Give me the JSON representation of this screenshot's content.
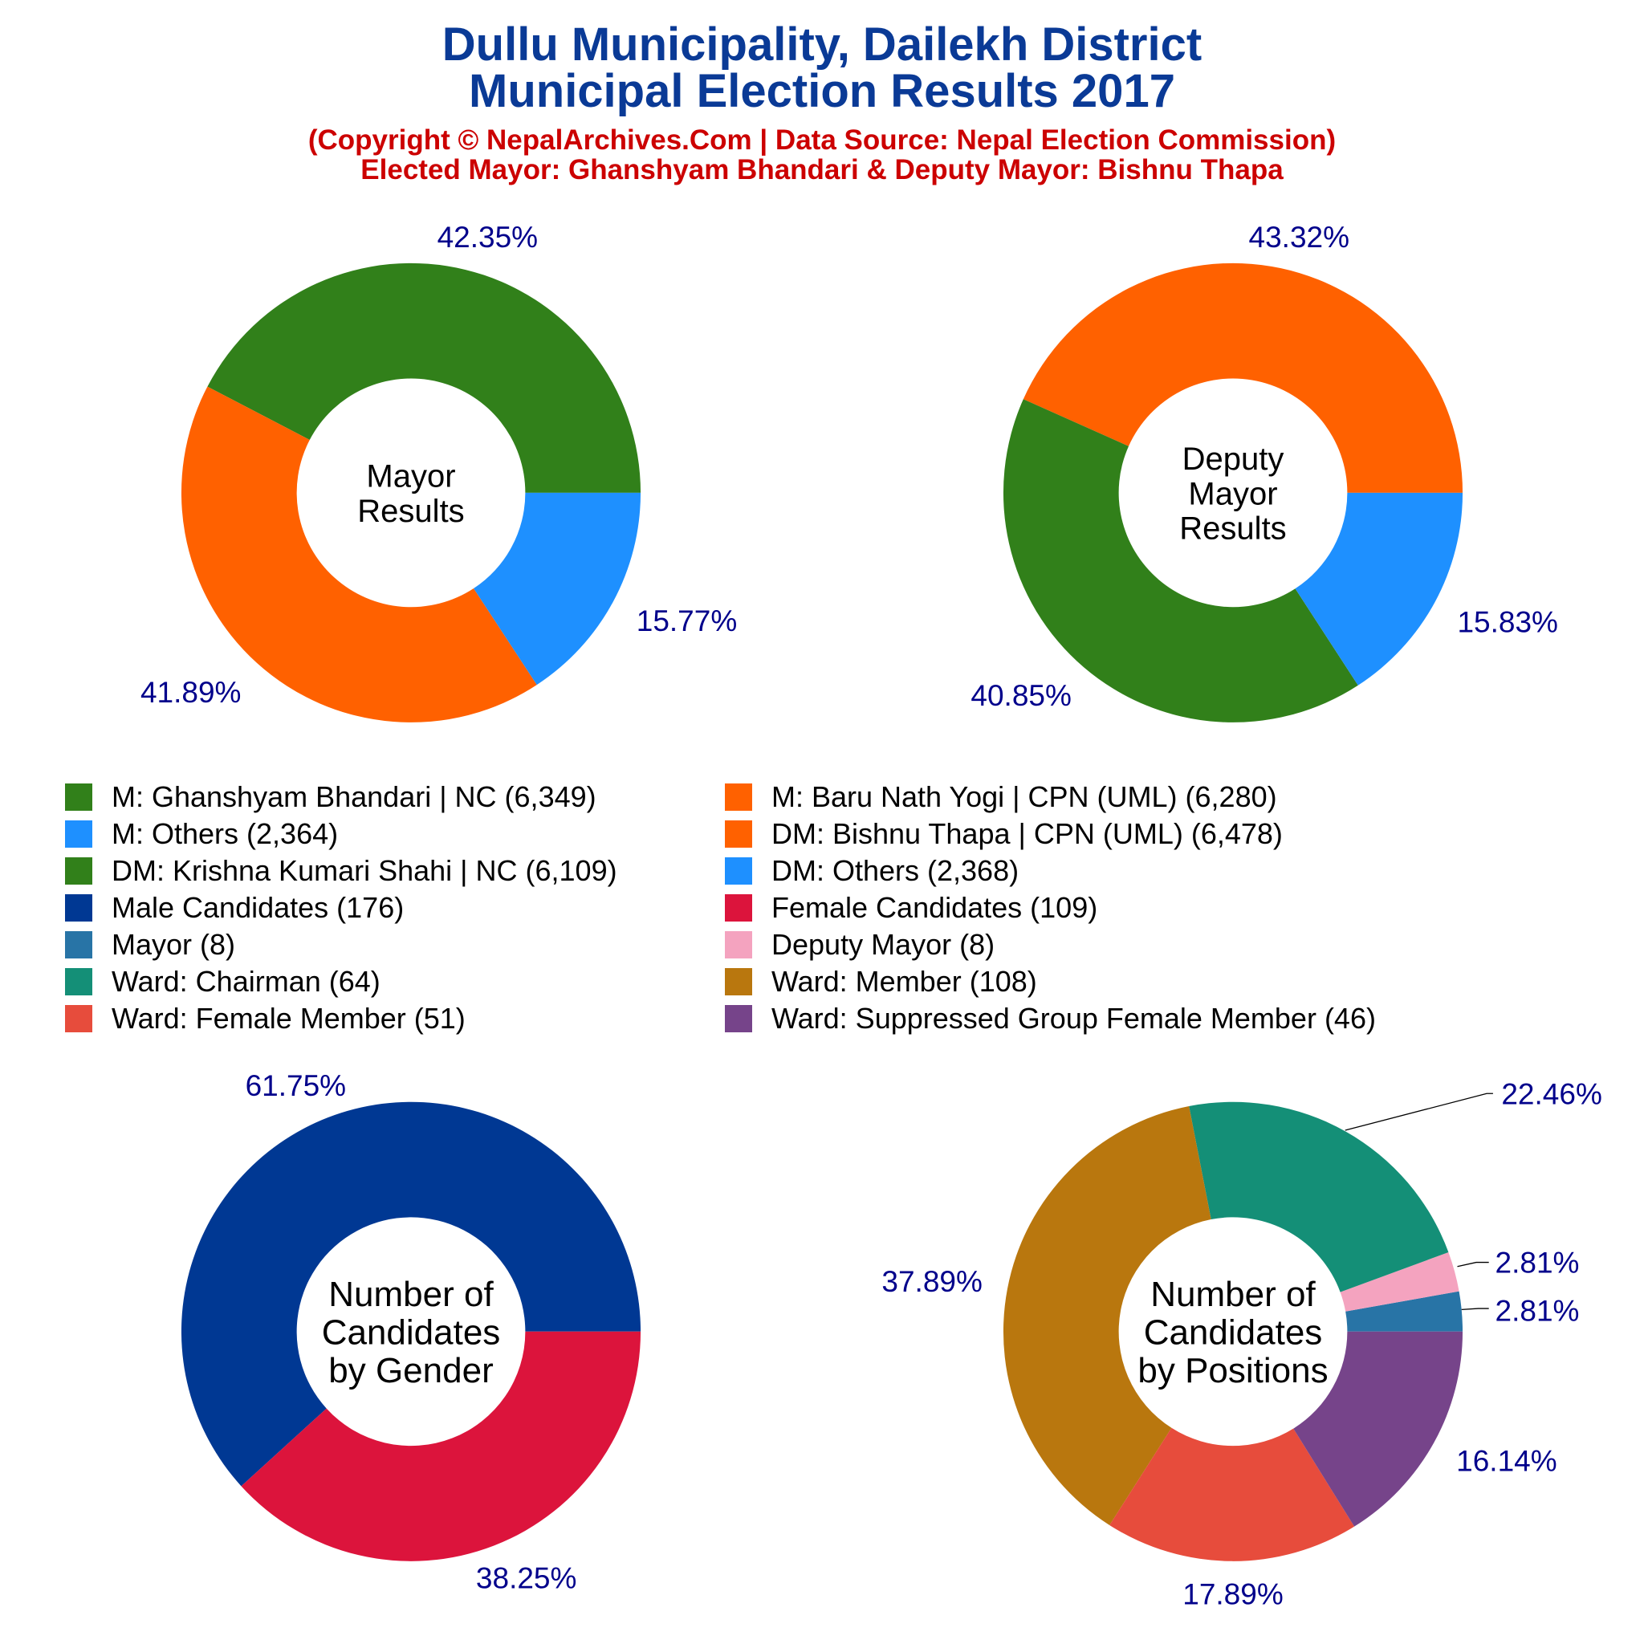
{
  "title": [
    "Dullu Municipality, Dailekh District",
    "Municipal Election Results 2017"
  ],
  "subtitle": [
    "(Copyright © NepalArchives.Com | Data Source: Nepal Election Commission)",
    "Elected Mayor: Ghanshyam Bhandari & Deputy Mayor: Bishnu Thapa"
  ],
  "label_color": "#00008b",
  "legend": [
    {
      "label": "M: Ghanshyam Bhandari | NC (6,349)",
      "color": "#31801a"
    },
    {
      "label": "M: Baru Nath Yogi | CPN (UML) (6,280)",
      "color": "#ff6100"
    },
    {
      "label": "M: Others (2,364)",
      "color": "#1e90ff"
    },
    {
      "label": "DM: Bishnu Thapa | CPN (UML) (6,478)",
      "color": "#ff6100"
    },
    {
      "label": "DM: Krishna Kumari Shahi | NC (6,109)",
      "color": "#31801a"
    },
    {
      "label": "DM: Others (2,368)",
      "color": "#1e90ff"
    },
    {
      "label": "Male Candidates (176)",
      "color": "#003893"
    },
    {
      "label": "Female Candidates (109)",
      "color": "#dc143c"
    },
    {
      "label": "Mayor (8)",
      "color": "#2874a6"
    },
    {
      "label": "Deputy Mayor (8)",
      "color": "#f4a3bf"
    },
    {
      "label": "Ward: Chairman (64)",
      "color": "#148f77"
    },
    {
      "label": "Ward: Member (108)",
      "color": "#b9770e"
    },
    {
      "label": "Ward: Female Member (51)",
      "color": "#e74c3c"
    },
    {
      "label": "Ward: Suppressed Group Female Member (46)",
      "color": "#76448a"
    }
  ],
  "chart_data": [
    {
      "type": "pie",
      "center_text": [
        "Mayor",
        "Results"
      ],
      "categories": [
        "M: Ghanshyam Bhandari | NC",
        "M: Baru Nath Yogi | CPN (UML)",
        "M: Others"
      ],
      "values": [
        6349,
        6280,
        2364
      ],
      "labels": [
        "42.35%",
        "41.89%",
        "15.77%"
      ],
      "colors": [
        "#31801a",
        "#ff6100",
        "#1e90ff"
      ]
    },
    {
      "type": "pie",
      "center_text": [
        "Deputy",
        "Mayor",
        "Results"
      ],
      "categories": [
        "DM: Bishnu Thapa | CPN (UML)",
        "DM: Krishna Kumari Shahi | NC",
        "DM: Others"
      ],
      "values": [
        6478,
        6109,
        2368
      ],
      "labels": [
        "43.32%",
        "40.85%",
        "15.83%"
      ],
      "colors": [
        "#ff6100",
        "#31801a",
        "#1e90ff"
      ]
    },
    {
      "type": "pie",
      "center_text": [
        "Number of",
        "Candidates",
        "by Gender"
      ],
      "categories": [
        "Male Candidates",
        "Female Candidates"
      ],
      "values": [
        176,
        109
      ],
      "labels": [
        "61.75%",
        "38.25%"
      ],
      "colors": [
        "#003893",
        "#dc143c"
      ]
    },
    {
      "type": "pie",
      "center_text": [
        "Number of",
        "Candidates",
        "by Positions"
      ],
      "categories": [
        "Mayor",
        "Deputy Mayor",
        "Ward: Chairman",
        "Ward: Member",
        "Ward: Female Member",
        "Ward: Suppressed Group Female Member"
      ],
      "values": [
        8,
        8,
        64,
        108,
        51,
        46
      ],
      "labels": [
        "2.81%",
        "2.81%",
        "22.46%",
        "37.89%",
        "17.89%",
        "16.14%"
      ],
      "colors": [
        "#2874a6",
        "#f4a3bf",
        "#148f77",
        "#b9770e",
        "#e74c3c",
        "#76448a"
      ]
    }
  ]
}
